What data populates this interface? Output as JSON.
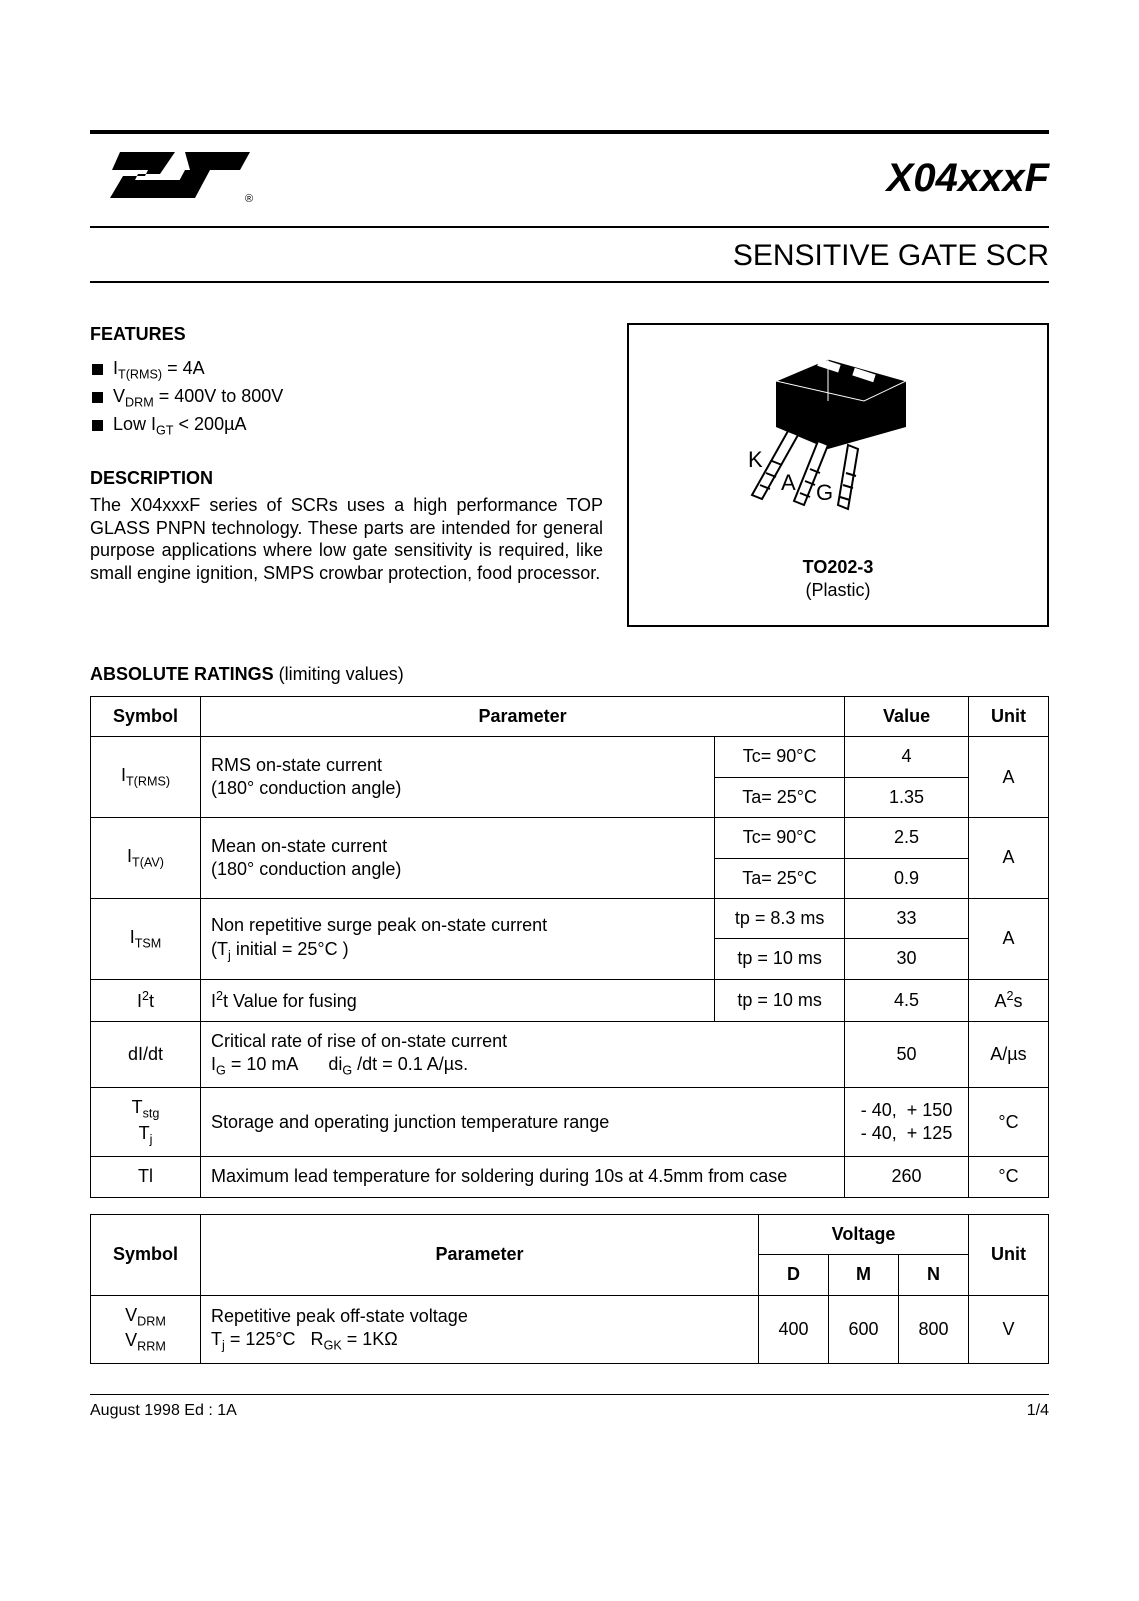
{
  "colors": {
    "text": "#000000",
    "background": "#ffffff",
    "rule": "#000000",
    "table_border": "#000000"
  },
  "typography": {
    "body_fontsize_pt": 13,
    "title_fontsize_pt": 30,
    "subtitle_fontsize_pt": 22,
    "font_family": "Arial, Helvetica, sans-serif"
  },
  "header": {
    "part_number": "X04xxxF",
    "subtitle": "SENSITIVE GATE SCR",
    "logo_name": "ST"
  },
  "features": {
    "heading": "FEATURES",
    "items": [
      "I<sub>T(RMS)</sub> = 4A",
      "V<sub>DRM</sub> = 400V to 800V",
      "Low I<sub>GT</sub> < 200µA"
    ]
  },
  "description": {
    "heading": "DESCRIPTION",
    "body": "The X04xxxF series of SCRs uses a high performance TOP GLASS PNPN technology. These parts are intended for general purpose applications where low gate sensitivity is required, like small engine ignition, SMPS crowbar protection, food processor."
  },
  "package": {
    "pins": {
      "K": "K",
      "A": "A",
      "G": "G"
    },
    "name": "TO202-3",
    "material": "(Plastic)"
  },
  "ratings_heading_bold": "ABSOLUTE RATINGS",
  "ratings_heading_rest": "  (limiting values)",
  "table1": {
    "columns": {
      "symbol": "Symbol",
      "parameter": "Parameter",
      "value": "Value",
      "unit": "Unit"
    },
    "rows": [
      {
        "symbol": "I<sub>T(RMS)</sub>",
        "parameter": "RMS on-state current<br>(180° conduction angle)",
        "sub": [
          {
            "cond": "Tc= 90°C",
            "value": "4"
          },
          {
            "cond": "Ta= 25°C",
            "value": "1.35"
          }
        ],
        "unit": "A",
        "param_colspan": 1
      },
      {
        "symbol": "I<sub>T(AV)</sub>",
        "parameter": "Mean on-state current<br>(180° conduction angle)",
        "sub": [
          {
            "cond": "Tc= 90°C",
            "value": "2.5"
          },
          {
            "cond": "Ta= 25°C",
            "value": "0.9"
          }
        ],
        "unit": "A",
        "param_colspan": 1
      },
      {
        "symbol": "I<sub>TSM</sub>",
        "parameter": "Non repetitive surge peak on-state current<br>(T<sub>j</sub> initial = 25°C )",
        "sub": [
          {
            "cond": "tp = 8.3 ms",
            "value": "33"
          },
          {
            "cond": "tp = 10 ms",
            "value": "30"
          }
        ],
        "unit": "A",
        "param_colspan": 1
      },
      {
        "symbol": "I<sup>2</sup>t",
        "parameter": "I<sup>2</sup>t Value for fusing",
        "sub": [
          {
            "cond": "tp = 10 ms",
            "value": "4.5"
          }
        ],
        "unit": "A<sup>2</sup>s",
        "param_colspan": 1
      },
      {
        "symbol": "dI/dt",
        "parameter": "Critical rate of rise of on-state current<br>I<sub>G</sub> = 10 mA&nbsp;&nbsp;&nbsp;&nbsp;&nbsp;&nbsp;di<sub>G</sub> /dt = 0.1 A/µs.",
        "sub": [
          {
            "cond": null,
            "value": "50"
          }
        ],
        "unit": "A/µs",
        "param_colspan": 2
      },
      {
        "symbol": "T<sub>stg</sub><br>T<sub>j</sub>",
        "parameter": "Storage and operating junction temperature range",
        "sub": [
          {
            "cond": null,
            "value": "- 40,&nbsp;&nbsp;+ 150<br>- 40,&nbsp;&nbsp;+ 125"
          }
        ],
        "unit": "°C",
        "param_colspan": 2
      },
      {
        "symbol": "Tl",
        "parameter": "Maximum lead temperature for soldering during  10s at 4.5mm from case",
        "sub": [
          {
            "cond": null,
            "value": "260"
          }
        ],
        "unit": "°C",
        "param_colspan": 2
      }
    ]
  },
  "table2": {
    "columns": {
      "symbol": "Symbol",
      "parameter": "Parameter",
      "voltage": "Voltage",
      "D": "D",
      "M": "M",
      "N": "N",
      "unit": "Unit"
    },
    "row": {
      "symbol": "V<sub>DRM</sub><br>V<sub>RRM</sub>",
      "parameter": "Repetitive peak off-state voltage<br>T<sub>j</sub> = 125°C&nbsp;&nbsp;&nbsp;R<sub>GK</sub> = 1KΩ",
      "D": "400",
      "M": "600",
      "N": "800",
      "unit": "V"
    }
  },
  "footer": {
    "left": "August 1998    Ed : 1A",
    "right": "1/4"
  }
}
